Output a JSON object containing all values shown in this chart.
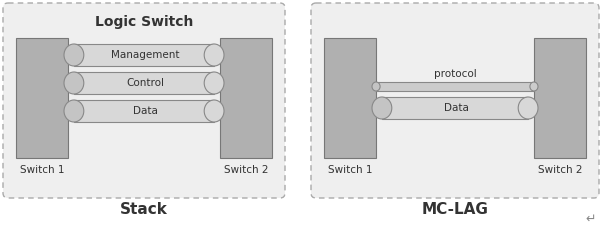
{
  "bg_color": "#eeeeee",
  "outer_bg": "#ffffff",
  "panel_bg": "#efefef",
  "switch_color": "#b0b0b0",
  "switch_edge": "#777777",
  "channel_color": "#d8d8d8",
  "channel_edge": "#888888",
  "title_stack": "Logic Switch",
  "label_stack": "Stack",
  "label_mclag": "MC-LAG",
  "switch1_label": "Switch 1",
  "switch2_label": "Switch 2",
  "channels_left": [
    "Management",
    "Control",
    "Data"
  ],
  "protocol_label": "protocol",
  "data_label": "Data",
  "font_color": "#333333",
  "panel_edge": "#aaaaaa"
}
